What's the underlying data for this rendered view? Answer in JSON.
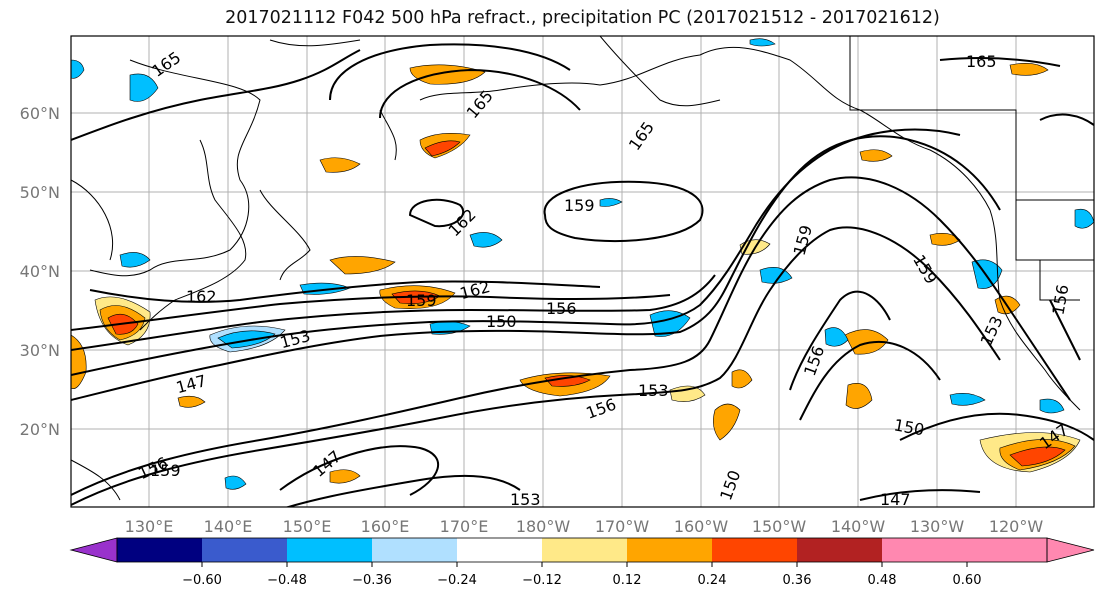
{
  "title": "2017021112 F042 500 hPa refract., precipitation PC (2017021512 - 2017021612)",
  "latitude_labels": [
    "60°N",
    "50°N",
    "40°N",
    "30°N",
    "20°N"
  ],
  "longitude_labels": [
    "130°E",
    "140°E",
    "150°E",
    "160°E",
    "170°E",
    "180°W",
    "170°W",
    "160°W",
    "150°W",
    "140°W",
    "130°W",
    "120°W"
  ],
  "contour_labels": [
    "165",
    "165",
    "165",
    "165",
    "162",
    "162",
    "162",
    "159",
    "159",
    "159",
    "159",
    "156",
    "156",
    "156",
    "156",
    "156",
    "153",
    "153",
    "153",
    "150",
    "150",
    "150",
    "147",
    "147",
    "147",
    "147",
    "153",
    "159"
  ],
  "colorbar": {
    "tick_labels": [
      "−0.60",
      "−0.48",
      "−0.36",
      "−0.24",
      "−0.12",
      "0.12",
      "0.24",
      "0.36",
      "0.48",
      "0.60"
    ],
    "colors": [
      "#9932cc",
      "#000080",
      "#3a5bcd",
      "#00bfff",
      "#b0e0ff",
      "#ffffff",
      "#ffe988",
      "#ffa500",
      "#ff4500",
      "#b22222",
      "#ff88b0",
      "#ff88b0"
    ]
  },
  "colors": {
    "frame": "#000000",
    "grid": "#b0b0b0",
    "positive_light": "#ffe988",
    "positive_mid": "#ffa500",
    "positive_strong": "#ff4500",
    "negative_light": "#b0e0ff",
    "negative_mid": "#00bfff"
  }
}
